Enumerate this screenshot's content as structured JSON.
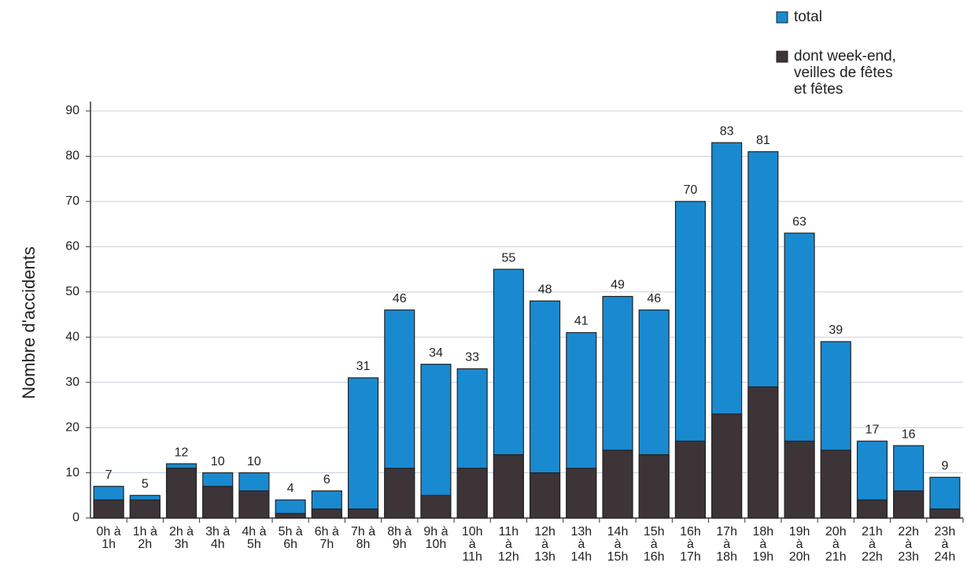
{
  "chart_data": {
    "type": "bar",
    "ylabel": "Nombre d'accidents",
    "categories": [
      "0h à 1h",
      "1h à 2h",
      "2h à 3h",
      "3h à 4h",
      "4h à 5h",
      "5h à 6h",
      "6h à 7h",
      "7h à 8h",
      "8h à 9h",
      "9h à 10h",
      "10h à 11h",
      "11h à 12h",
      "12h à 13h",
      "13h à 14h",
      "14h à 15h",
      "15h à 16h",
      "16h à 17h",
      "17h à 18h",
      "18h à 19h",
      "19h à 20h",
      "20h à 21h",
      "21h à 22h",
      "22h à 23h",
      "23h à 24h"
    ],
    "series": [
      {
        "name": "total",
        "color": "#1a8ad0",
        "values": [
          7,
          5,
          12,
          10,
          10,
          4,
          6,
          31,
          46,
          34,
          33,
          55,
          48,
          41,
          49,
          46,
          70,
          83,
          81,
          63,
          39,
          17,
          16,
          9
        ]
      },
      {
        "name": "dont week-end, veilles de fêtes et fêtes",
        "color": "#3d3438",
        "values": [
          4,
          4,
          11,
          7,
          6,
          1,
          2,
          2,
          11,
          5,
          11,
          14,
          10,
          11,
          15,
          14,
          17,
          23,
          29,
          17,
          15,
          4,
          6,
          2
        ]
      }
    ],
    "ylim": [
      0,
      90
    ],
    "yticks": [
      0,
      10,
      20,
      30,
      40,
      50,
      60,
      70,
      80,
      90
    ],
    "grid": true,
    "legend": "top-right"
  }
}
